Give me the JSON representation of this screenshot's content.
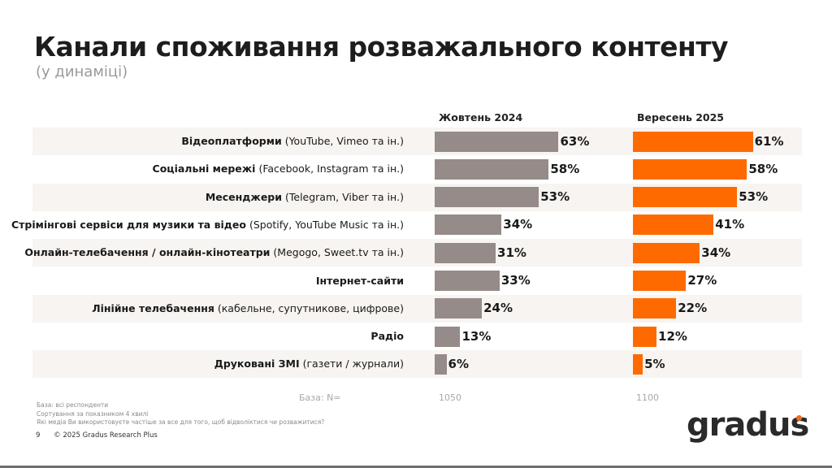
{
  "header": {
    "title": "Канали споживання розважального контенту",
    "subtitle": "(у динаміці)"
  },
  "chart_data": {
    "type": "bar",
    "orientation": "horizontal",
    "categories": [
      {
        "bold": "Відеоплатформи",
        "regular": " (YouTube, Vimeo та ін.)"
      },
      {
        "bold": "Соціальні мережі",
        "regular": " (Facebook, Instagram та ін.)"
      },
      {
        "bold": "Месенджери",
        "regular": " (Telegram, Viber та ін.)"
      },
      {
        "bold": "Стрімінгові сервіси для музики та відео",
        "regular": " (Spotify, YouTube Music та ін.)"
      },
      {
        "bold": "Онлайн-телебачення / онлайн-кінотеатри",
        "regular": " (Megogo, Sweet.tv та ін.)"
      },
      {
        "bold": "Інтернет-сайти",
        "regular": ""
      },
      {
        "bold": "Лінійне телебачення",
        "regular": " (кабельне, супутникове, цифрове)"
      },
      {
        "bold": "Радіо",
        "regular": ""
      },
      {
        "bold": "Друковані ЗМІ",
        "regular": " (газети / журнали)"
      }
    ],
    "series": [
      {
        "name": "Жовтень 2024",
        "color": "#958b88",
        "values": [
          63,
          58,
          53,
          34,
          31,
          33,
          24,
          13,
          6
        ],
        "base_n": "1050"
      },
      {
        "name": "Вересень 2025",
        "color": "#ff6a00",
        "values": [
          61,
          58,
          53,
          41,
          34,
          27,
          22,
          12,
          5
        ],
        "base_n": "1100"
      }
    ],
    "value_suffix": "%",
    "xlim": [
      0,
      100
    ],
    "grid": false,
    "row_shading_color": "#f7f4f1"
  },
  "base_label": "База: N=",
  "notes": [
    "База: всі респонденти",
    "Сортування за показником 4 хвилі",
    "Які медіа Ви використовуєте частіше за все для того, щоб відволіктися чи розважитися?"
  ],
  "footer": {
    "page_number": "9",
    "copyright": "© 2025 Gradus Research Plus"
  },
  "logo": {
    "text": "gradus",
    "dot_color": "#f26b21"
  }
}
